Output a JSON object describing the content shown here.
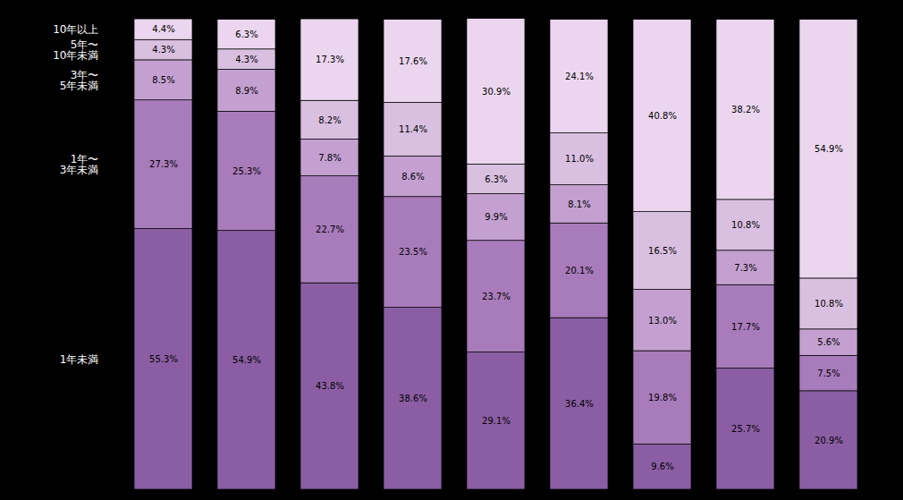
{
  "chart_data": {
    "type": "bar",
    "stacked": true,
    "data_labels": true,
    "tick_labels": false,
    "grid": false,
    "ylim": [
      0,
      100
    ],
    "categories": [
      null,
      null,
      null,
      null,
      null,
      null,
      null,
      null,
      null
    ],
    "series": [
      {
        "name": "1年未満",
        "color": "#8B5EA4",
        "values": [
          55.3,
          54.9,
          43.8,
          38.6,
          29.1,
          36.4,
          9.6,
          25.7,
          20.9
        ],
        "value_labels": [
          "55.3%",
          "54.9%",
          "43.8%",
          "38.6%",
          "29.1%",
          "36.4%",
          "9.6%",
          "25.7%",
          "20.9%"
        ]
      },
      {
        "name": "1年〜\n3年未満",
        "color": "#A87BBB",
        "values": [
          27.3,
          25.3,
          22.7,
          23.5,
          23.7,
          20.1,
          19.8,
          17.7,
          7.5
        ],
        "value_labels": [
          "27.3%",
          "25.3%",
          "22.7%",
          "23.5%",
          "23.7%",
          "20.1%",
          "19.8%",
          "17.7%",
          "7.5%"
        ]
      },
      {
        "name": "3年〜\n5年未満",
        "color": "#C4A0D0",
        "values": [
          8.5,
          8.9,
          7.8,
          8.6,
          9.9,
          8.1,
          13.0,
          7.3,
          5.6
        ],
        "value_labels": [
          "8.5%",
          "8.9%",
          "7.8%",
          "8.6%",
          "9.9%",
          "8.1%",
          "13.0%",
          "7.3%",
          "5.6%"
        ]
      },
      {
        "name": "5年〜\n10年未満",
        "color": "#D9BFE0",
        "values": [
          4.3,
          4.3,
          8.2,
          11.4,
          6.3,
          11.0,
          16.5,
          10.8,
          10.8
        ],
        "value_labels": [
          "4.3%",
          "4.3%",
          "8.2%",
          "11.4%",
          "6.3%",
          "11.0%",
          "16.5%",
          "10.8%",
          "10.8%"
        ]
      },
      {
        "name": "10年以上",
        "color": "#ECD6EF",
        "values": [
          4.4,
          6.3,
          17.3,
          17.6,
          30.9,
          24.1,
          40.8,
          38.2,
          54.9
        ],
        "value_labels": [
          "4.4%",
          "6.3%",
          "17.3%",
          "17.6%",
          "30.9%",
          "24.1%",
          "40.8%",
          "38.2%",
          "54.9%"
        ]
      }
    ]
  }
}
